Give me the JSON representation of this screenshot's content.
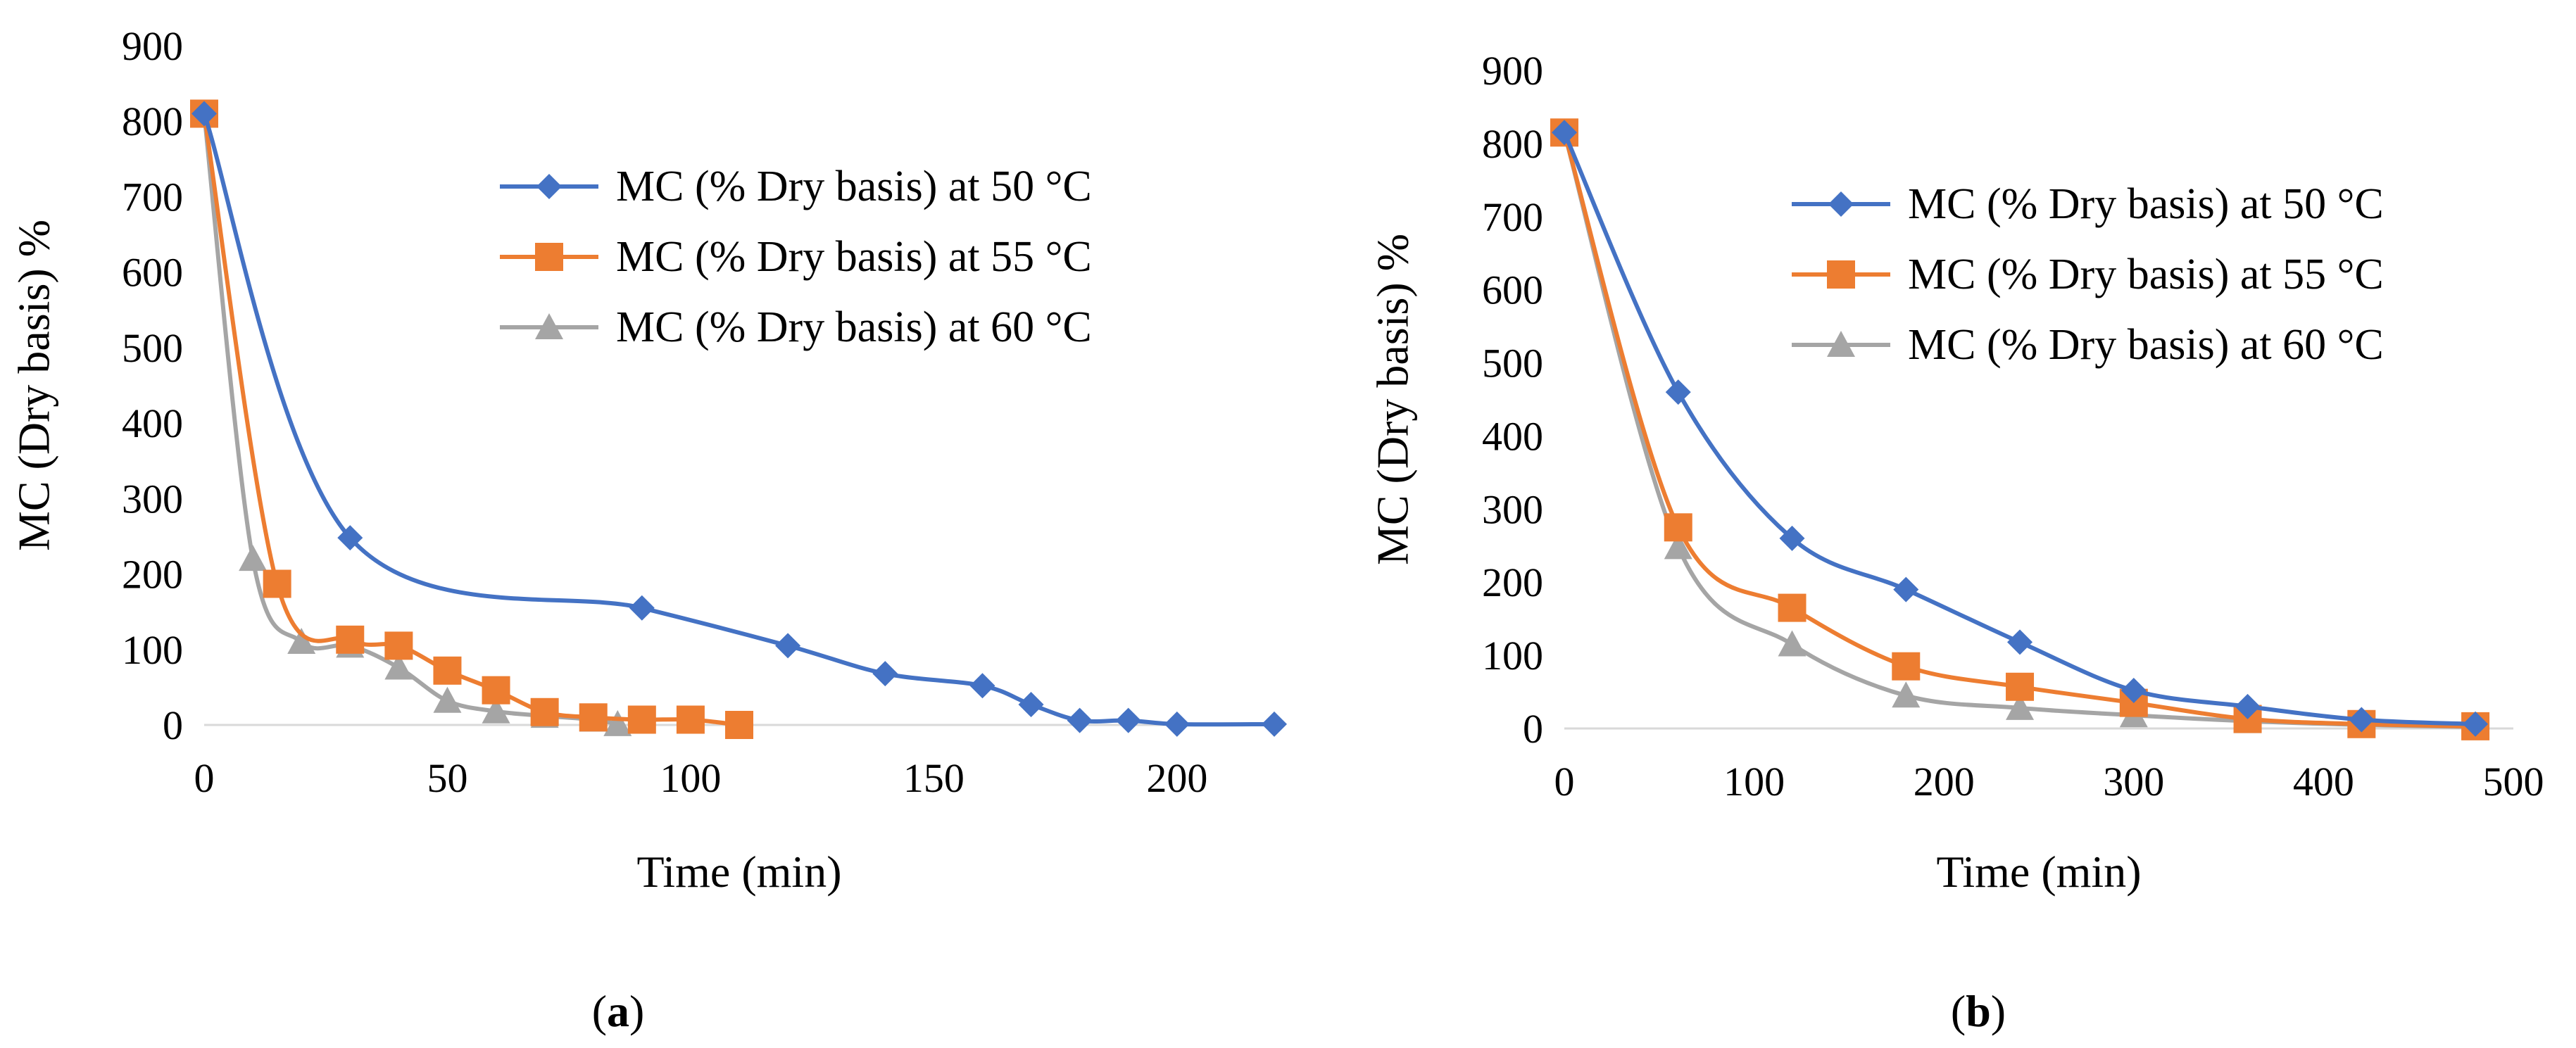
{
  "chart_data": [
    {
      "type": "line",
      "panel": "a",
      "xlabel": "Time (min)",
      "ylabel": "MC (Dry basis) %",
      "xlim": [
        0,
        220
      ],
      "ylim": [
        0,
        900
      ],
      "xticks": [
        0,
        50,
        100,
        150,
        200
      ],
      "yticks": [
        0,
        100,
        200,
        300,
        400,
        500,
        600,
        700,
        800,
        900
      ],
      "grid": false,
      "legend": "top-right",
      "series": [
        {
          "name": "MC (% Dry basis) at 50 °C",
          "color": "#4472C4",
          "marker": "diamond",
          "x": [
            0,
            30,
            90,
            120,
            140,
            160,
            170,
            180,
            190,
            200,
            220
          ],
          "y": [
            810,
            248,
            155,
            105,
            68,
            52,
            27,
            6,
            6,
            1,
            1
          ]
        },
        {
          "name": "MC (% Dry basis) at 55 °C",
          "color": "#ED7D31",
          "marker": "square",
          "x": [
            0,
            15,
            30,
            40,
            50,
            60,
            70,
            80,
            90,
            100,
            110
          ],
          "y": [
            810,
            187,
            113,
            105,
            72,
            46,
            17,
            10,
            7,
            7,
            0
          ]
        },
        {
          "name": "MC (% Dry basis) at 60 °C",
          "color": "#A5A5A5",
          "marker": "triangle",
          "x": [
            0,
            10,
            20,
            30,
            40,
            50,
            60,
            70,
            80,
            85
          ],
          "y": [
            810,
            220,
            110,
            105,
            76,
            32,
            18,
            12,
            7,
            1
          ]
        }
      ]
    },
    {
      "type": "line",
      "panel": "b",
      "xlabel": "Time (min)",
      "ylabel": "MC (Dry basis) %",
      "xlim": [
        0,
        500
      ],
      "ylim": [
        0,
        900
      ],
      "xticks": [
        0,
        100,
        200,
        300,
        400,
        500
      ],
      "yticks": [
        0,
        100,
        200,
        300,
        400,
        500,
        600,
        700,
        800,
        900
      ],
      "grid": false,
      "legend": "top-right",
      "series": [
        {
          "name": "MC (% Dry basis) at 50 °C",
          "color": "#4472C4",
          "marker": "diamond",
          "x": [
            0,
            60,
            120,
            180,
            240,
            300,
            360,
            420,
            480
          ],
          "y": [
            815,
            460,
            260,
            190,
            118,
            52,
            30,
            12,
            6
          ]
        },
        {
          "name": "MC (% Dry basis) at 55 °C",
          "color": "#ED7D31",
          "marker": "square",
          "x": [
            0,
            60,
            120,
            180,
            240,
            300,
            360,
            420,
            480
          ],
          "y": [
            815,
            275,
            165,
            85,
            57,
            35,
            13,
            6,
            3
          ]
        },
        {
          "name": "MC (% Dry basis) at 60 °C",
          "color": "#A5A5A5",
          "marker": "triangle",
          "x": [
            0,
            60,
            120,
            180,
            240,
            300,
            360,
            420,
            480
          ],
          "y": [
            815,
            248,
            115,
            45,
            28,
            18,
            10,
            5,
            2
          ]
        }
      ]
    }
  ],
  "captions": {
    "a": {
      "open": "(",
      "letter": "a",
      "close": ")"
    },
    "b": {
      "open": "(",
      "letter": "b",
      "close": ")"
    }
  }
}
